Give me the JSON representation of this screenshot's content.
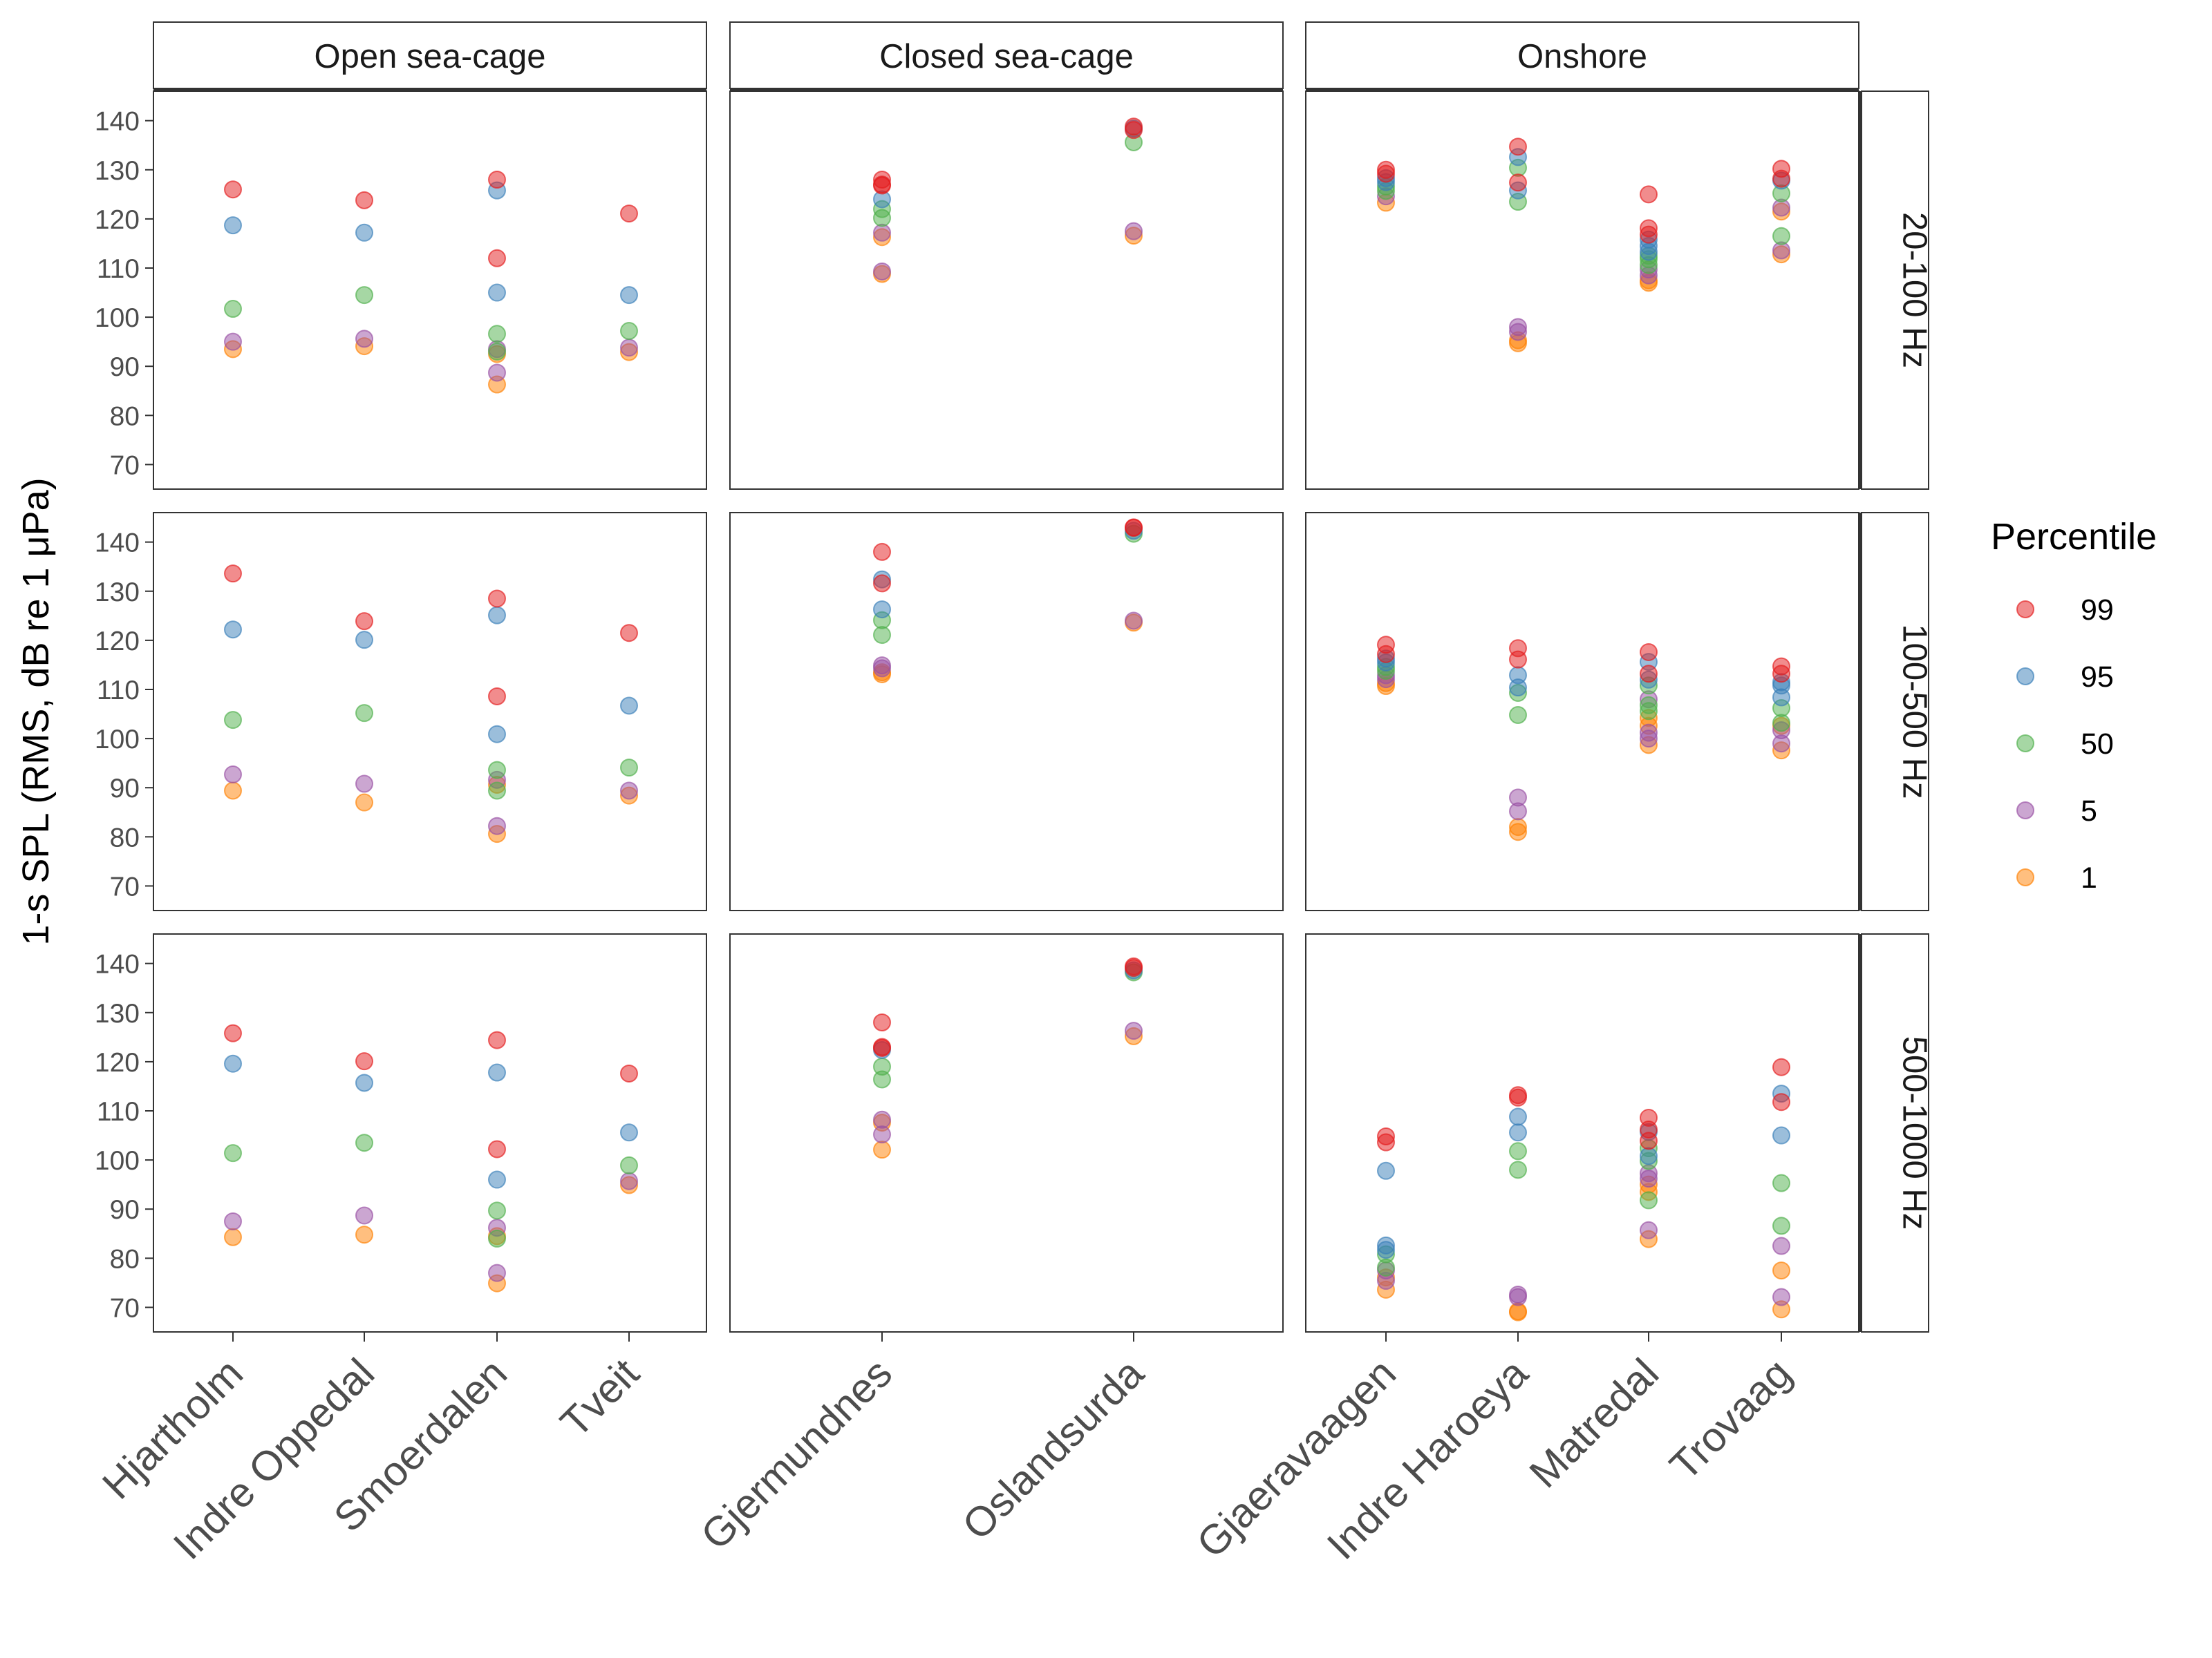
{
  "chart_data": {
    "type": "scatter",
    "ylabel": "1-s SPL (RMS, dB re 1 μPa)",
    "ylim": [
      65,
      146
    ],
    "yticks": [
      70,
      80,
      90,
      100,
      110,
      120,
      130,
      140
    ],
    "legend": {
      "title": "Percentile",
      "placement": "right",
      "entries": [
        {
          "key": "99",
          "label": "99",
          "color": "#e41a1c"
        },
        {
          "key": "95",
          "label": "95",
          "color": "#377eb8"
        },
        {
          "key": "50",
          "label": "50",
          "color": "#4daf4a"
        },
        {
          "key": "5",
          "label": "5",
          "color": "#984ea3"
        },
        {
          "key": "1",
          "label": "1",
          "color": "#ff7f00"
        }
      ]
    },
    "column_facets": [
      {
        "name": "Open sea-cage",
        "sites": [
          "Hjartholm",
          "Indre Oppedal",
          "Smoerdalen",
          "Tveit"
        ]
      },
      {
        "name": "Closed sea-cage",
        "sites": [
          "Gjermundnes",
          "Oslandsurda"
        ]
      },
      {
        "name": "Onshore",
        "sites": [
          "Gjaeravaagen",
          "Indre Haroeya",
          "Matredal",
          "Trovaag"
        ]
      }
    ],
    "row_facets": [
      "20-100 Hz",
      "100-500 Hz",
      "500-1000 Hz"
    ],
    "panels": [
      {
        "row": "20-100 Hz",
        "column": "Open sea-cage",
        "points": {
          "Hjartholm": {
            "99": [
              126
            ],
            "95": [
              118.7
            ],
            "50": [
              101.7
            ],
            "5": [
              95
            ],
            "1": [
              93.5
            ]
          },
          "Indre Oppedal": {
            "99": [
              123.8
            ],
            "95": [
              117.2
            ],
            "50": [
              104.5
            ],
            "5": [
              95.6
            ],
            "1": [
              94.1
            ]
          },
          "Smoerdalen": {
            "99": [
              128,
              112
            ],
            "95": [
              125.8,
              105
            ],
            "50": [
              96.6,
              93
            ],
            "5": [
              93.5,
              88.7
            ],
            "1": [
              92.5,
              86.3
            ]
          },
          "Tveit": {
            "99": [
              121.1
            ],
            "95": [
              104.5
            ],
            "50": [
              97.2
            ],
            "5": [
              93.8
            ],
            "1": [
              92.9
            ]
          }
        }
      },
      {
        "row": "20-100 Hz",
        "column": "Closed sea-cage",
        "points": {
          "Gjermundnes": {
            "99": [
              128,
              127,
              126.8
            ],
            "95": [
              124
            ],
            "50": [
              122,
              120.2
            ],
            "5": [
              117.2,
              109.3
            ],
            "1": [
              116.3,
              108.8
            ]
          },
          "Oslandsurda": {
            "99": [
              138.8,
              138.1
            ],
            "95": [
              138.4
            ],
            "50": [
              135.6
            ],
            "5": [
              117.5
            ],
            "1": [
              116.6
            ]
          }
        }
      },
      {
        "row": "20-100 Hz",
        "column": "Onshore",
        "points": {
          "Gjaeravaagen": {
            "99": [
              130,
              129.2
            ],
            "95": [
              128.3,
              127.5
            ],
            "50": [
              126.6,
              125.7
            ],
            "5": [
              124.6
            ],
            "1": [
              123.3
            ]
          },
          "Indre Haroeya": {
            "99": [
              134.7,
              127.4
            ],
            "95": [
              132.6,
              125.8
            ],
            "50": [
              130.4,
              123.5
            ],
            "5": [
              98,
              97
            ],
            "1": [
              95.3,
              94.7
            ]
          },
          "Matredal": {
            "99": [
              125,
              118.1,
              116.8
            ],
            "95": [
              115.8,
              114.5,
              113.3
            ],
            "50": [
              112.5,
              111.8,
              110.6
            ],
            "5": [
              109.7,
              108.5
            ],
            "1": [
              107.5,
              107
            ]
          },
          "Trovaag": {
            "99": [
              130.2,
              128.2
            ],
            "95": [
              127.8
            ],
            "50": [
              125.2,
              116.5
            ],
            "5": [
              122.3,
              113.6
            ],
            "1": [
              121.5,
              112.8
            ]
          }
        }
      },
      {
        "row": "100-500 Hz",
        "column": "Open sea-cage",
        "points": {
          "Hjartholm": {
            "99": [
              133.6
            ],
            "95": [
              122.2
            ],
            "50": [
              103.8
            ],
            "5": [
              92.7
            ],
            "1": [
              89.4
            ]
          },
          "Indre Oppedal": {
            "99": [
              123.9
            ],
            "95": [
              120.1
            ],
            "50": [
              105.2
            ],
            "5": [
              90.8
            ],
            "1": [
              87
            ]
          },
          "Smoerdalen": {
            "99": [
              128.5,
              108.6
            ],
            "95": [
              125.1,
              100.9
            ],
            "50": [
              93.6,
              89.4
            ],
            "5": [
              91.6,
              82.2
            ],
            "1": [
              90.6,
              80.6
            ]
          },
          "Tveit": {
            "99": [
              121.5
            ],
            "95": [
              106.7
            ],
            "50": [
              94.1
            ],
            "5": [
              89.4
            ],
            "1": [
              88.4
            ]
          }
        }
      },
      {
        "row": "100-500 Hz",
        "column": "Closed sea-cage",
        "points": {
          "Gjermundnes": {
            "99": [
              138,
              131.6
            ],
            "95": [
              132.4,
              126.3
            ],
            "50": [
              124.1,
              121.1
            ],
            "5": [
              114.9,
              114.3
            ],
            "1": [
              113.5,
              113.1
            ]
          },
          "Oslandsurda": {
            "99": [
              143,
              142.9
            ],
            "95": [
              142.3
            ],
            "50": [
              141.7
            ],
            "5": [
              124
            ],
            "1": [
              123.6
            ]
          }
        }
      },
      {
        "row": "100-500 Hz",
        "column": "Onshore",
        "points": {
          "Gjaeravaagen": {
            "99": [
              119.1,
              117.2
            ],
            "95": [
              116.3,
              115.5
            ],
            "50": [
              114.6,
              113.8
            ],
            "5": [
              112.9,
              112.1
            ],
            "1": [
              111.3,
              110.7
            ]
          },
          "Indre Haroeya": {
            "99": [
              118.4,
              116.1
            ],
            "95": [
              112.9,
              110.4
            ],
            "50": [
              109.3,
              104.8
            ],
            "5": [
              88,
              85.2
            ],
            "1": [
              82,
              81
            ]
          },
          "Matredal": {
            "99": [
              117.6,
              113.2
            ],
            "95": [
              115.6,
              112
            ],
            "50": [
              110.8,
              106.8,
              105.6
            ],
            "5": [
              108,
              101.2,
              100
            ],
            "1": [
              104.2,
              102.6,
              98.7
            ]
          },
          "Trovaag": {
            "99": [
              114.7,
              113.2
            ],
            "95": [
              111.5,
              110.8,
              108.4
            ],
            "50": [
              106.2,
              103.2
            ],
            "5": [
              101.7,
              99
            ],
            "1": [
              102.6,
              97.6
            ]
          }
        }
      },
      {
        "row": "500-1000 Hz",
        "column": "Open sea-cage",
        "points": {
          "Hjartholm": {
            "99": [
              125.8
            ],
            "95": [
              119.6
            ],
            "50": [
              101.4
            ],
            "5": [
              87.5
            ],
            "1": [
              84.3
            ]
          },
          "Indre Oppedal": {
            "99": [
              120.1
            ],
            "95": [
              115.7
            ],
            "50": [
              103.5
            ],
            "5": [
              88.7
            ],
            "1": [
              84.8
            ]
          },
          "Smoerdalen": {
            "99": [
              124.4,
              102.2
            ],
            "95": [
              117.8,
              96
            ],
            "50": [
              89.7,
              84
            ],
            "5": [
              86.2,
              77
            ],
            "1": [
              84.5,
              74.9
            ]
          },
          "Tveit": {
            "99": [
              117.6
            ],
            "95": [
              105.6
            ],
            "50": [
              98.9
            ],
            "5": [
              95.7
            ],
            "1": [
              94.9
            ]
          }
        }
      },
      {
        "row": "500-1000 Hz",
        "column": "Closed sea-cage",
        "points": {
          "Gjermundnes": {
            "99": [
              128,
              123,
              122.8
            ],
            "95": [
              122.4
            ],
            "50": [
              119,
              116.4
            ],
            "5": [
              108.2,
              105.2
            ],
            "1": [
              107.6,
              102.1
            ]
          },
          "Oslandsurda": {
            "99": [
              139.4,
              139.1
            ],
            "95": [
              138.6
            ],
            "50": [
              138.2
            ],
            "5": [
              126.3
            ],
            "1": [
              125.2
            ]
          }
        }
      },
      {
        "row": "500-1000 Hz",
        "column": "Onshore",
        "points": {
          "Gjaeravaagen": {
            "99": [
              104.8,
              103.6
            ],
            "95": [
              97.8,
              82.6,
              81.7
            ],
            "50": [
              80.8,
              78.1
            ],
            "5": [
              77.5,
              75.4
            ],
            "1": [
              76.1,
              73.6
            ]
          },
          "Indre Haroeya": {
            "99": [
              113.2,
              112.7
            ],
            "95": [
              108.8,
              105.6
            ],
            "50": [
              101.8,
              98
            ],
            "5": [
              72.6,
              72.1
            ],
            "1": [
              69.2,
              69
            ]
          },
          "Matredal": {
            "99": [
              108.6,
              106.2,
              103.9
            ],
            "95": [
              105.7,
              100.8
            ],
            "50": [
              102.4,
              99.8,
              91.8
            ],
            "5": [
              97.3,
              96.2,
              85.7
            ],
            "1": [
              95,
              93.5,
              83.9
            ]
          },
          "Trovaag": {
            "99": [
              118.9,
              111.8
            ],
            "95": [
              113.5,
              105
            ],
            "50": [
              95.3,
              86.6
            ],
            "5": [
              82.5,
              72.1
            ],
            "1": [
              77.5,
              69.6
            ]
          }
        }
      }
    ]
  }
}
